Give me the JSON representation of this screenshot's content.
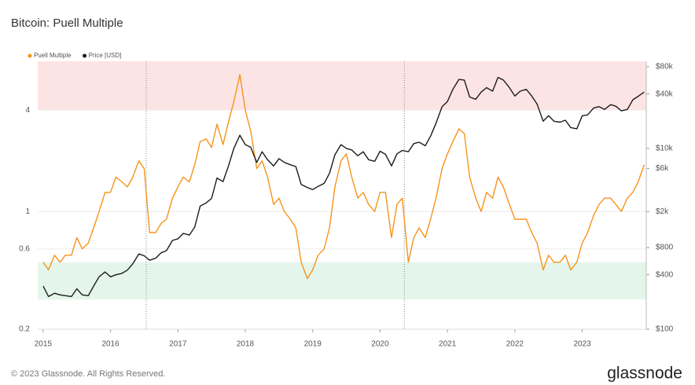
{
  "chart_data": {
    "type": "line",
    "title": "Bitcoin: Puell Multiple",
    "footer": "© 2023 Glassnode. All Rights Reserved.",
    "brand": "glassnode",
    "x": [
      2015,
      2015.08,
      2015.17,
      2015.25,
      2015.33,
      2015.42,
      2015.5,
      2015.58,
      2015.67,
      2015.75,
      2015.83,
      2015.92,
      2016,
      2016.08,
      2016.17,
      2016.25,
      2016.33,
      2016.42,
      2016.5,
      2016.58,
      2016.67,
      2016.75,
      2016.83,
      2016.92,
      2017,
      2017.08,
      2017.17,
      2017.25,
      2017.33,
      2017.42,
      2017.5,
      2017.58,
      2017.67,
      2017.75,
      2017.83,
      2017.92,
      2018,
      2018.08,
      2018.17,
      2018.25,
      2018.33,
      2018.42,
      2018.5,
      2018.58,
      2018.67,
      2018.75,
      2018.83,
      2018.92,
      2019,
      2019.08,
      2019.17,
      2019.25,
      2019.33,
      2019.42,
      2019.5,
      2019.58,
      2019.67,
      2019.75,
      2019.83,
      2019.92,
      2020,
      2020.08,
      2020.17,
      2020.25,
      2020.33,
      2020.42,
      2020.5,
      2020.58,
      2020.67,
      2020.75,
      2020.83,
      2020.92,
      2021,
      2021.08,
      2021.17,
      2021.25,
      2021.33,
      2021.42,
      2021.5,
      2021.58,
      2021.67,
      2021.75,
      2021.83,
      2021.92,
      2022,
      2022.08,
      2022.17,
      2022.25,
      2022.33,
      2022.42,
      2022.5,
      2022.58,
      2022.67,
      2022.75,
      2022.83,
      2022.92,
      2023,
      2023.08,
      2023.17,
      2023.25,
      2023.33,
      2023.42,
      2023.5,
      2023.58,
      2023.67,
      2023.75,
      2023.83,
      2023.92
    ],
    "series": [
      {
        "name": "Puell Multiple",
        "color": "#f7931a",
        "values": [
          0.5,
          0.45,
          0.55,
          0.5,
          0.55,
          0.55,
          0.7,
          0.6,
          0.65,
          0.8,
          1.0,
          1.3,
          1.3,
          1.6,
          1.5,
          1.4,
          1.6,
          2.0,
          1.8,
          0.75,
          0.75,
          0.85,
          0.9,
          1.2,
          1.4,
          1.6,
          1.5,
          1.9,
          2.6,
          2.7,
          2.4,
          3.3,
          2.5,
          3.4,
          4.5,
          6.5,
          4.0,
          3.0,
          1.8,
          2.0,
          1.6,
          1.1,
          1.2,
          1.0,
          0.9,
          0.8,
          0.5,
          0.4,
          0.45,
          0.55,
          0.6,
          0.8,
          1.4,
          2.0,
          2.2,
          1.6,
          1.2,
          1.3,
          1.1,
          1.0,
          1.3,
          1.3,
          0.7,
          1.1,
          1.2,
          0.5,
          0.7,
          0.8,
          0.7,
          0.9,
          1.2,
          1.8,
          2.2,
          2.6,
          3.1,
          2.9,
          1.6,
          1.2,
          1.0,
          1.3,
          1.2,
          1.6,
          1.4,
          1.1,
          0.9,
          0.9,
          0.9,
          0.75,
          0.65,
          0.45,
          0.55,
          0.5,
          0.5,
          0.55,
          0.45,
          0.5,
          0.65,
          0.75,
          0.95,
          1.1,
          1.2,
          1.2,
          1.1,
          1.0,
          1.2,
          1.3,
          1.5,
          1.9
        ]
      },
      {
        "name": "Price [USD]",
        "color": "#1c1c1c",
        "axis": "y2",
        "values": [
          300,
          230,
          250,
          240,
          235,
          230,
          280,
          240,
          235,
          300,
          380,
          430,
          380,
          400,
          415,
          450,
          530,
          680,
          650,
          580,
          610,
          700,
          740,
          960,
          1000,
          1150,
          1100,
          1350,
          2300,
          2500,
          2800,
          4700,
          4300,
          6400,
          10000,
          14000,
          11000,
          10300,
          7000,
          9200,
          7500,
          6400,
          7700,
          7000,
          6600,
          6300,
          4000,
          3700,
          3500,
          3800,
          4100,
          5300,
          8500,
          11000,
          10000,
          9600,
          8300,
          9200,
          7500,
          7200,
          9300,
          8600,
          6400,
          8700,
          9500,
          9200,
          11300,
          11700,
          10700,
          13700,
          19000,
          29000,
          33000,
          45000,
          58000,
          57000,
          37000,
          35000,
          42000,
          47000,
          43000,
          61000,
          57000,
          47000,
          38000,
          43000,
          45000,
          38000,
          31000,
          20000,
          23000,
          20000,
          19500,
          20500,
          17000,
          16500,
          23000,
          23500,
          28000,
          29000,
          27000,
          30500,
          29300,
          26000,
          27000,
          34500,
          37700,
          42000
        ]
      }
    ],
    "xlim": [
      2014.92,
      2023.95
    ],
    "xticks": [
      2015,
      2016,
      2017,
      2018,
      2019,
      2020,
      2021,
      2022,
      2023
    ],
    "ylim": [
      0.2,
      7.8
    ],
    "yticks": [
      0.2,
      0.6,
      1,
      4
    ],
    "y2lim": [
      100,
      92000
    ],
    "y2ticks": [
      {
        "value": 100,
        "label": "$100"
      },
      {
        "value": 400,
        "label": "$400"
      },
      {
        "value": 800,
        "label": "$800"
      },
      {
        "value": 2000,
        "label": "$2k"
      },
      {
        "value": 6000,
        "label": "$6k"
      },
      {
        "value": 10000,
        "label": "$10k"
      },
      {
        "value": 40000,
        "label": "$40k"
      },
      {
        "value": 80000,
        "label": "$80k"
      }
    ],
    "log_scale": true,
    "grid": true,
    "bands": [
      {
        "range": [
          4,
          7.8
        ],
        "color": "#fde4e4"
      },
      {
        "range": [
          0.3,
          0.5
        ],
        "color": "#e4f6eb"
      }
    ],
    "halvings": [
      2016.53,
      2020.36
    ],
    "legend": "top-left"
  }
}
